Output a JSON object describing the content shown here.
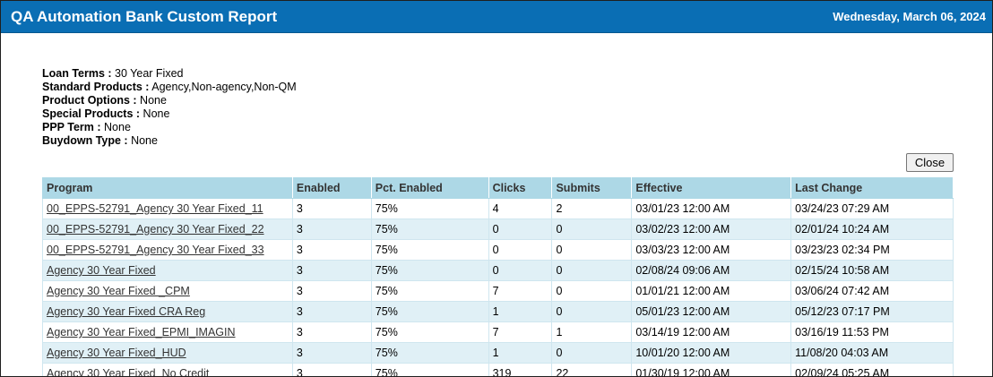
{
  "header": {
    "title": "QA Automation Bank Custom Report",
    "date": "Wednesday, March 06, 2024"
  },
  "criteria": [
    {
      "label": "Loan Terms :",
      "value": " 30 Year Fixed"
    },
    {
      "label": "Standard Products :",
      "value": " Agency,Non-agency,Non-QM"
    },
    {
      "label": "Product Options :",
      "value": " None"
    },
    {
      "label": "Special Products :",
      "value": " None"
    },
    {
      "label": "PPP Term :",
      "value": " None"
    },
    {
      "label": "Buydown Type :",
      "value": " None"
    }
  ],
  "close_label": "Close",
  "table": {
    "columns": [
      "Program",
      "Enabled",
      "Pct. Enabled",
      "Clicks",
      "Submits",
      "Effective",
      "Last Change"
    ],
    "rows": [
      [
        "00_EPPS-52791_Agency 30 Year Fixed_11",
        "3",
        "75%",
        "4",
        "2",
        "03/01/23 12:00 AM",
        "03/24/23 07:29 AM"
      ],
      [
        "00_EPPS-52791_Agency 30 Year Fixed_22",
        "3",
        "75%",
        "0",
        "0",
        "03/02/23 12:00 AM",
        "02/01/24 10:24 AM"
      ],
      [
        "00_EPPS-52791_Agency 30 Year Fixed_33",
        "3",
        "75%",
        "0",
        "0",
        "03/03/23 12:00 AM",
        "03/23/23 02:34 PM"
      ],
      [
        "Agency 30 Year Fixed",
        "3",
        "75%",
        "0",
        "0",
        "02/08/24 09:06 AM",
        "02/15/24 10:58 AM"
      ],
      [
        "Agency 30 Year Fixed _CPM",
        "3",
        "75%",
        "7",
        "0",
        "01/01/21 12:00 AM",
        "03/06/24 07:42 AM"
      ],
      [
        "Agency 30 Year Fixed CRA Reg",
        "3",
        "75%",
        "1",
        "0",
        "05/01/23 12:00 AM",
        "05/12/23 07:17 PM"
      ],
      [
        "Agency 30 Year Fixed_EPMI_IMAGIN",
        "3",
        "75%",
        "7",
        "1",
        "03/14/19 12:00 AM",
        "03/16/19 11:53 PM"
      ],
      [
        "Agency 30 Year Fixed_HUD",
        "3",
        "75%",
        "1",
        "0",
        "10/01/20 12:00 AM",
        "11/08/20 04:03 AM"
      ],
      [
        "Agency 30 Year Fixed_No Credit",
        "3",
        "75%",
        "319",
        "22",
        "01/30/19 12:00 AM",
        "02/09/24 05:25 AM"
      ]
    ]
  }
}
